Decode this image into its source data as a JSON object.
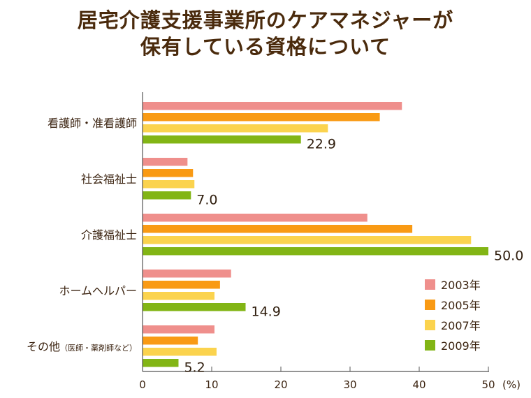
{
  "header": {
    "title_line1": "居宅介護支援事業所のケアマネジャーが",
    "title_line2": "保有している資格について"
  },
  "chart_data": {
    "type": "bar",
    "orientation": "horizontal",
    "title": "居宅介護支援事業所のケアマネジャーが保有している資格について",
    "unit": "(%)",
    "xlim": [
      0,
      50
    ],
    "xticks": [
      0,
      10,
      20,
      30,
      40,
      50
    ],
    "grid": false,
    "legend_position": "right",
    "categories": [
      {
        "main": "看護師・准看護師",
        "note": ""
      },
      {
        "main": "社会福祉士",
        "note": ""
      },
      {
        "main": "介護福祉士",
        "note": ""
      },
      {
        "main": "ホームヘルパー",
        "note": ""
      },
      {
        "main": "その他",
        "note": "（医師・薬剤師など）"
      }
    ],
    "series": [
      {
        "name": "2003年",
        "color": "#ef8f8c",
        "values": [
          37.5,
          6.5,
          32.5,
          12.8,
          10.4
        ]
      },
      {
        "name": "2005年",
        "color": "#f99a14",
        "values": [
          34.3,
          7.3,
          39.0,
          11.2,
          8.0
        ]
      },
      {
        "name": "2007年",
        "color": "#fbd34e",
        "values": [
          26.8,
          7.5,
          47.5,
          10.4,
          10.7
        ]
      },
      {
        "name": "2009年",
        "color": "#82b515",
        "values": [
          22.9,
          7.0,
          50.0,
          14.9,
          5.2
        ]
      }
    ],
    "value_labels": [
      "22.9",
      "7.0",
      "50.0",
      "14.9",
      "5.2"
    ],
    "value_label_series": "2009年",
    "axis_color": "#555555"
  }
}
